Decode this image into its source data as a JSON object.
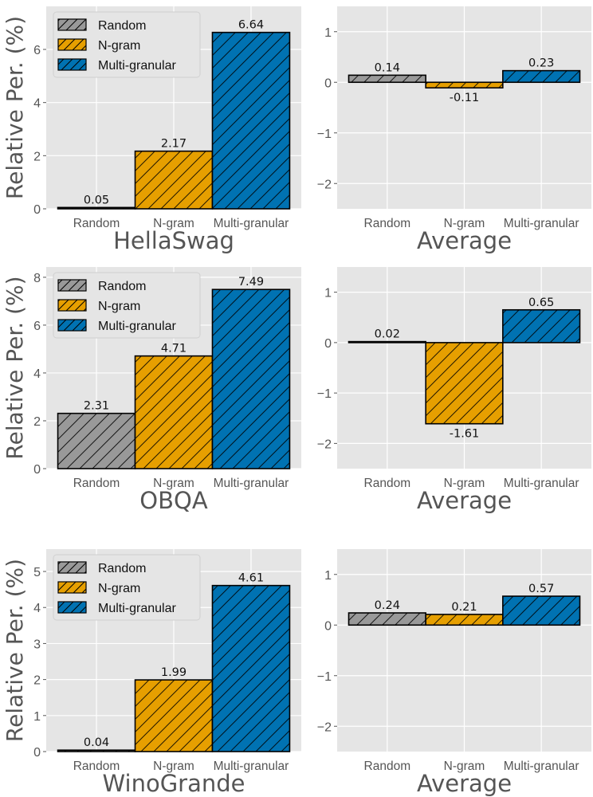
{
  "chart_data": [
    {
      "type": "bar",
      "xlabel": "HellaSwag",
      "ylabel": "Relative Per. (%)",
      "categories": [
        "Random",
        "N-gram",
        "Multi-granular"
      ],
      "values": [
        0.05,
        2.17,
        6.64
      ],
      "value_labels": [
        "0.05",
        "2.17",
        "6.64"
      ],
      "ylim": [
        0,
        7.62
      ],
      "yticks": [
        0,
        2,
        4,
        6
      ],
      "ytick_labels": [
        "0",
        "2",
        "4",
        "6"
      ],
      "legend": true,
      "legend_placement": "top-left",
      "grid": true
    },
    {
      "type": "bar",
      "xlabel": "Average",
      "ylabel": "",
      "categories": [
        "Random",
        "N-gram",
        "Multi-granular"
      ],
      "values": [
        0.14,
        -0.11,
        0.23
      ],
      "value_labels": [
        "0.14",
        "-0.11",
        "0.23"
      ],
      "ylim": [
        -2.5,
        1.5
      ],
      "yticks": [
        1,
        0,
        -1,
        -2
      ],
      "ytick_labels": [
        "1",
        "0",
        "−1",
        "−2"
      ],
      "legend": false,
      "grid": true
    },
    {
      "type": "bar",
      "xlabel": "OBQA",
      "ylabel": "Relative Per. (%)",
      "categories": [
        "Random",
        "N-gram",
        "Multi-granular"
      ],
      "values": [
        2.31,
        4.71,
        7.49
      ],
      "value_labels": [
        "2.31",
        "4.71",
        "7.49"
      ],
      "ylim": [
        0,
        8.43
      ],
      "yticks": [
        0,
        2,
        4,
        6,
        8
      ],
      "ytick_labels": [
        "0",
        "2",
        "4",
        "6",
        "8"
      ],
      "legend": true,
      "legend_placement": "top-left",
      "grid": true
    },
    {
      "type": "bar",
      "xlabel": "Average",
      "ylabel": "",
      "categories": [
        "Random",
        "N-gram",
        "Multi-granular"
      ],
      "values": [
        0.02,
        -1.61,
        0.65
      ],
      "value_labels": [
        "0.02",
        "-1.61",
        "0.65"
      ],
      "ylim": [
        -2.5,
        1.5
      ],
      "yticks": [
        1,
        0,
        -1,
        -2
      ],
      "ytick_labels": [
        "1",
        "0",
        "−1",
        "−2"
      ],
      "legend": false,
      "grid": true
    },
    {
      "type": "bar",
      "xlabel": "WinoGrande",
      "ylabel": "Relative Per. (%)",
      "categories": [
        "Random",
        "N-gram",
        "Multi-granular"
      ],
      "values": [
        0.04,
        1.99,
        4.61
      ],
      "value_labels": [
        "0.04",
        "1.99",
        "4.61"
      ],
      "ylim": [
        0,
        5.62
      ],
      "yticks": [
        0,
        1,
        2,
        3,
        4,
        5
      ],
      "ytick_labels": [
        "0",
        "1",
        "2",
        "3",
        "4",
        "5"
      ],
      "legend": true,
      "legend_placement": "top-left",
      "grid": true
    },
    {
      "type": "bar",
      "xlabel": "Average",
      "ylabel": "",
      "categories": [
        "Random",
        "N-gram",
        "Multi-granular"
      ],
      "values": [
        0.24,
        0.21,
        0.57
      ],
      "value_labels": [
        "0.24",
        "0.21",
        "0.57"
      ],
      "ylim": [
        -2.5,
        1.5
      ],
      "yticks": [
        1,
        0,
        -1,
        -2
      ],
      "ytick_labels": [
        "1",
        "0",
        "−1",
        "−2"
      ],
      "legend": false,
      "grid": true
    }
  ],
  "legend_entries": [
    "Random",
    "N-gram",
    "Multi-granular"
  ],
  "colors": {
    "Random": "#999999",
    "N-gram": "#E69F00",
    "Multi-granular": "#0072B2",
    "background": "#E5E5E5",
    "grid": "#FFFFFF"
  },
  "hatch": "/"
}
